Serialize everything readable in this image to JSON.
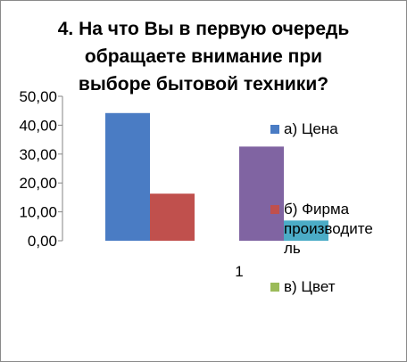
{
  "chart_data": {
    "type": "bar",
    "title_lines": [
      "4. На что Вы в первую очередь",
      "обращаете внимание при",
      "выборе бытовой техники?"
    ],
    "categories": [
      "1"
    ],
    "ylim": [
      0,
      50
    ],
    "yticks": [
      "0,00",
      "10,00",
      "20,00",
      "30,00",
      "40,00",
      "50,00"
    ],
    "grid": false,
    "legend_position": "right",
    "series": [
      {
        "name": "а) Цена",
        "legend_lines": [
          "а) Цена"
        ],
        "values": [
          44.2
        ],
        "color": "#4a7cc4"
      },
      {
        "name": "б) Фирма производитель",
        "legend_lines": [
          "б) Фирма",
          "производите",
          "ль"
        ],
        "values": [
          16.3
        ],
        "color": "#c0504d"
      },
      {
        "name": "в) Цвет",
        "legend_lines": [
          "в)  Цвет"
        ],
        "values": [
          0
        ],
        "color": "#9bbb59"
      },
      {
        "name": "",
        "legend_lines": [],
        "values": [
          32.6
        ],
        "color": "#8064a2"
      },
      {
        "name": "",
        "legend_lines": [],
        "values": [
          7.0
        ],
        "color": "#4bacc6"
      }
    ]
  }
}
